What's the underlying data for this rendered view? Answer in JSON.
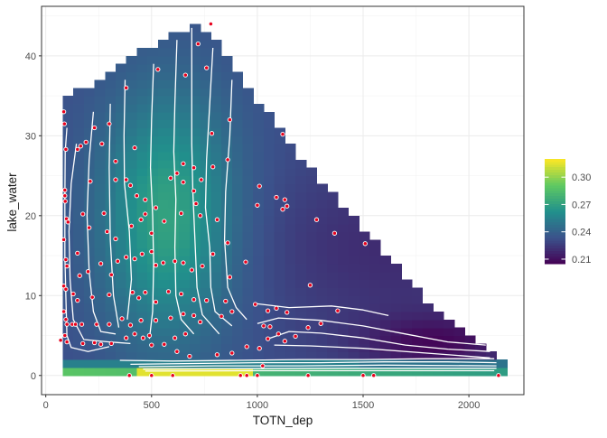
{
  "chart_data": {
    "type": "heatmap",
    "title": "",
    "xlabel": "TOTN_dep",
    "ylabel": "lake_water",
    "xlim": [
      -20,
      2260
    ],
    "ylim": [
      -2.4,
      46.2
    ],
    "x_ticks": [
      0,
      500,
      1000,
      1500,
      2000
    ],
    "x_tick_labels": [
      "0",
      "500",
      "1000",
      "1500",
      "2000"
    ],
    "y_ticks": [
      0,
      10,
      20,
      30,
      40
    ],
    "y_tick_labels": [
      "0",
      "10",
      "20",
      "30",
      "40"
    ],
    "grid": true,
    "legend_position": "right",
    "colorbar": {
      "min": 0.205,
      "max": 0.32,
      "ticks": [
        0.21,
        0.24,
        0.27,
        0.3
      ],
      "tick_labels": [
        "0.21",
        "0.24",
        "0.27",
        "0.30"
      ],
      "palette": [
        "#440154",
        "#3b528b",
        "#21908c",
        "#5ec962",
        "#fde725"
      ]
    },
    "surface": {
      "x_range": [
        80,
        2150
      ],
      "y_range": [
        0,
        44
      ],
      "cell_w": 50,
      "cell_h": 1,
      "upper_boundary": [
        [
          80,
          34
        ],
        [
          150,
          35
        ],
        [
          300,
          37
        ],
        [
          450,
          40
        ],
        [
          600,
          42
        ],
        [
          700,
          43.5
        ],
        [
          850,
          40
        ],
        [
          1000,
          34
        ],
        [
          1200,
          27
        ],
        [
          1400,
          21
        ],
        [
          1600,
          15
        ],
        [
          1800,
          9
        ],
        [
          2000,
          5
        ],
        [
          2150,
          2
        ]
      ],
      "max_region": {
        "x": 580,
        "y": 20
      },
      "min_region": {
        "x": 1850,
        "y": 4
      },
      "high_strip": {
        "x_from": 450,
        "x_to": 1000,
        "y": 0.3
      }
    },
    "contours": [
      {
        "level": 0.25,
        "points": [
          [
            100,
            31
          ],
          [
            92,
            28
          ],
          [
            90,
            22
          ],
          [
            90,
            15
          ],
          [
            95,
            10
          ],
          [
            100,
            5
          ],
          [
            120,
            3.5
          ],
          [
            200,
            3
          ],
          [
            300,
            3.6
          ]
        ]
      },
      {
        "level": 0.255,
        "points": [
          [
            145,
            29
          ],
          [
            120,
            24
          ],
          [
            110,
            18
          ],
          [
            115,
            12
          ],
          [
            130,
            7
          ],
          [
            180,
            4.5
          ],
          [
            300,
            4.2
          ],
          [
            400,
            4
          ]
        ]
      },
      {
        "level": 0.26,
        "points": [
          [
            225,
            33
          ],
          [
            205,
            27
          ],
          [
            195,
            20
          ],
          [
            205,
            13
          ],
          [
            225,
            8
          ],
          [
            260,
            5.5
          ],
          [
            330,
            5.2
          ]
        ]
      },
      {
        "level": 0.265,
        "points": [
          [
            305,
            34
          ],
          [
            300,
            26
          ],
          [
            305,
            17
          ],
          [
            320,
            10
          ],
          [
            345,
            6
          ]
        ]
      },
      {
        "level": 0.27,
        "points": [
          [
            375,
            37
          ],
          [
            370,
            30
          ],
          [
            372,
            24
          ],
          [
            395,
            18
          ],
          [
            405,
            12
          ],
          [
            385,
            7
          ]
        ]
      },
      {
        "level": 0.265,
        "points": [
          [
            510,
            39
          ],
          [
            500,
            32
          ],
          [
            495,
            26
          ],
          [
            505,
            20
          ],
          [
            510,
            14
          ],
          [
            505,
            8
          ],
          [
            490,
            4.6
          ]
        ]
      },
      {
        "level": 0.26,
        "points": [
          [
            620,
            42
          ],
          [
            610,
            34
          ],
          [
            605,
            28
          ],
          [
            615,
            22
          ],
          [
            610,
            16
          ],
          [
            615,
            10
          ],
          [
            640,
            7
          ],
          [
            700,
            5.2
          ]
        ]
      },
      {
        "level": 0.255,
        "points": [
          [
            690,
            43.5
          ],
          [
            690,
            36
          ],
          [
            690,
            29
          ],
          [
            695,
            23
          ],
          [
            705,
            17
          ],
          [
            715,
            11
          ],
          [
            740,
            7.6
          ],
          [
            820,
            5.2
          ]
        ]
      },
      {
        "level": 0.25,
        "points": [
          [
            790,
            41
          ],
          [
            775,
            34
          ],
          [
            760,
            27
          ],
          [
            755,
            21
          ],
          [
            775,
            16
          ],
          [
            780,
            11
          ],
          [
            800,
            8
          ],
          [
            880,
            6.2
          ]
        ]
      },
      {
        "level": 0.245,
        "points": [
          [
            880,
            37
          ],
          [
            870,
            30
          ],
          [
            850,
            23
          ],
          [
            845,
            17
          ],
          [
            860,
            11
          ],
          [
            900,
            8.5
          ],
          [
            950,
            7
          ]
        ]
      },
      {
        "level": 0.24,
        "points": [
          [
            990,
            9
          ],
          [
            1150,
            8.5
          ],
          [
            1350,
            8.7
          ],
          [
            1500,
            8.2
          ],
          [
            1620,
            7.5
          ]
        ]
      },
      {
        "level": 0.235,
        "points": [
          [
            1000,
            6.5
          ],
          [
            1100,
            7.2
          ],
          [
            1300,
            6.9
          ],
          [
            1500,
            6.2
          ],
          [
            1700,
            5.2
          ],
          [
            1900,
            4.2
          ],
          [
            2080,
            3.8
          ]
        ]
      },
      {
        "level": 0.23,
        "points": [
          [
            1040,
            4.5
          ],
          [
            1150,
            5.5
          ],
          [
            1300,
            5.3
          ],
          [
            1500,
            4.7
          ],
          [
            1700,
            3.8
          ],
          [
            1900,
            3.3
          ],
          [
            2100,
            3
          ]
        ]
      },
      {
        "level": 0.225,
        "points": [
          [
            1080,
            3.8
          ],
          [
            1250,
            3.7
          ],
          [
            1500,
            3.4
          ],
          [
            1800,
            2.8
          ],
          [
            2100,
            2.2
          ]
        ]
      },
      {
        "level": 0.26,
        "points": [
          [
            350,
            1.9
          ],
          [
            600,
            1.8
          ],
          [
            900,
            1.9
          ],
          [
            1200,
            2
          ],
          [
            1500,
            2
          ],
          [
            1800,
            2.1
          ],
          [
            2120,
            2.1
          ]
        ]
      },
      {
        "level": 0.27,
        "points": [
          [
            400,
            1.4
          ],
          [
            700,
            1.5
          ],
          [
            1000,
            1.6
          ],
          [
            1300,
            1.6
          ],
          [
            1600,
            1.7
          ],
          [
            1900,
            1.7
          ],
          [
            2130,
            1.6
          ]
        ]
      },
      {
        "level": 0.28,
        "points": [
          [
            440,
            1.1
          ],
          [
            800,
            1.2
          ],
          [
            1200,
            1.2
          ],
          [
            1600,
            1.3
          ],
          [
            2130,
            1.2
          ]
        ]
      },
      {
        "level": 0.29,
        "points": [
          [
            460,
            0.8
          ],
          [
            900,
            0.85
          ],
          [
            1400,
            0.9
          ],
          [
            2130,
            0.9
          ]
        ]
      },
      {
        "level": 0.3,
        "points": [
          [
            470,
            0.55
          ],
          [
            1000,
            0.6
          ],
          [
            1600,
            0.6
          ],
          [
            2120,
            0.6
          ]
        ]
      }
    ],
    "points": [
      [
        780,
        44
      ],
      [
        720,
        41.5
      ],
      [
        760,
        38.5
      ],
      [
        530,
        38.3
      ],
      [
        660,
        37.6
      ],
      [
        380,
        36
      ],
      [
        870,
        32
      ],
      [
        300,
        31.5
      ],
      [
        785,
        30.3
      ],
      [
        1120,
        30.2
      ],
      [
        85,
        33
      ],
      [
        88,
        31.5
      ],
      [
        95,
        28.3
      ],
      [
        150,
        28.3
      ],
      [
        165,
        28.7
      ],
      [
        190,
        29.2
      ],
      [
        230,
        31
      ],
      [
        265,
        29
      ],
      [
        420,
        28.5
      ],
      [
        330,
        26.8
      ],
      [
        790,
        26.1
      ],
      [
        210,
        24.3
      ],
      [
        330,
        24.5
      ],
      [
        380,
        24.5
      ],
      [
        400,
        23.8
      ],
      [
        430,
        22.5
      ],
      [
        470,
        22
      ],
      [
        520,
        21
      ],
      [
        590,
        24.7
      ],
      [
        620,
        25.3
      ],
      [
        650,
        26.5
      ],
      [
        700,
        26
      ],
      [
        650,
        24.2
      ],
      [
        700,
        23.1
      ],
      [
        735,
        24.5
      ],
      [
        860,
        27
      ],
      [
        1010,
        23.7
      ],
      [
        1090,
        22.3
      ],
      [
        1130,
        22
      ],
      [
        1140,
        21.2
      ],
      [
        1120,
        20.8
      ],
      [
        1000,
        21.3
      ],
      [
        1280,
        19.5
      ],
      [
        1365,
        17.8
      ],
      [
        1510,
        16.5
      ],
      [
        90,
        23.2
      ],
      [
        90,
        22.5
      ],
      [
        92,
        21.8
      ],
      [
        98,
        19.6
      ],
      [
        105,
        19.2
      ],
      [
        175,
        20.2
      ],
      [
        205,
        18.5
      ],
      [
        275,
        20.3
      ],
      [
        290,
        18
      ],
      [
        330,
        17.1
      ],
      [
        405,
        18.7
      ],
      [
        450,
        19.5
      ],
      [
        470,
        20.2
      ],
      [
        500,
        17.8
      ],
      [
        560,
        19.3
      ],
      [
        640,
        20.3
      ],
      [
        710,
        21.5
      ],
      [
        730,
        20
      ],
      [
        810,
        19.5
      ],
      [
        860,
        16.6
      ],
      [
        945,
        14.2
      ],
      [
        85,
        17
      ],
      [
        95,
        14.5
      ],
      [
        100,
        13.7
      ],
      [
        150,
        15.3
      ],
      [
        160,
        12.5
      ],
      [
        200,
        13
      ],
      [
        260,
        14
      ],
      [
        310,
        12.6
      ],
      [
        340,
        14.3
      ],
      [
        380,
        14.8
      ],
      [
        420,
        14.6
      ],
      [
        455,
        15.2
      ],
      [
        500,
        15.5
      ],
      [
        520,
        13.8
      ],
      [
        555,
        14.1
      ],
      [
        610,
        14.3
      ],
      [
        650,
        14.1
      ],
      [
        690,
        13.2
      ],
      [
        740,
        13.7
      ],
      [
        790,
        15.2
      ],
      [
        870,
        12.3
      ],
      [
        1250,
        11.3
      ],
      [
        85,
        11.2
      ],
      [
        95,
        10.8
      ],
      [
        130,
        10.2
      ],
      [
        150,
        9.4
      ],
      [
        220,
        9.8
      ],
      [
        300,
        10.1
      ],
      [
        410,
        10.4
      ],
      [
        440,
        9.7
      ],
      [
        470,
        10.4
      ],
      [
        520,
        9.2
      ],
      [
        580,
        10.5
      ],
      [
        640,
        10.2
      ],
      [
        700,
        9.5
      ],
      [
        760,
        9.4
      ],
      [
        850,
        9.3
      ],
      [
        85,
        8
      ],
      [
        95,
        7
      ],
      [
        100,
        6.4
      ],
      [
        125,
        6.4
      ],
      [
        140,
        6.4
      ],
      [
        170,
        6.4
      ],
      [
        240,
        6.4
      ],
      [
        300,
        6.4
      ],
      [
        360,
        7.1
      ],
      [
        400,
        6.3
      ],
      [
        450,
        6.9
      ],
      [
        520,
        6.9
      ],
      [
        590,
        7.2
      ],
      [
        650,
        7.7
      ],
      [
        700,
        7.5
      ],
      [
        730,
        6.7
      ],
      [
        830,
        7.4
      ],
      [
        880,
        8
      ],
      [
        990,
        8.9
      ],
      [
        1050,
        8.1
      ],
      [
        1090,
        8.4
      ],
      [
        1140,
        7.9
      ],
      [
        1240,
        6
      ],
      [
        1300,
        6.5
      ],
      [
        1380,
        8.1
      ],
      [
        1030,
        6.2
      ],
      [
        1060,
        6.1
      ],
      [
        1100,
        5.2
      ],
      [
        1050,
        4.6
      ],
      [
        90,
        5
      ],
      [
        100,
        4.2
      ],
      [
        175,
        4
      ],
      [
        230,
        4.1
      ],
      [
        260,
        3.9
      ],
      [
        310,
        4
      ],
      [
        380,
        4.7
      ],
      [
        420,
        5.2
      ],
      [
        460,
        4.7
      ],
      [
        490,
        5
      ],
      [
        500,
        3.8
      ],
      [
        560,
        3.9
      ],
      [
        610,
        4.7
      ],
      [
        660,
        5.2
      ],
      [
        620,
        3
      ],
      [
        680,
        2.4
      ],
      [
        810,
        2.6
      ],
      [
        880,
        2.8
      ],
      [
        950,
        3.6
      ],
      [
        1010,
        3.4
      ],
      [
        1130,
        4.3
      ],
      [
        1180,
        4.9
      ],
      [
        1025,
        1.2
      ],
      [
        920,
        0
      ],
      [
        950,
        0
      ],
      [
        1000,
        0
      ],
      [
        500,
        0
      ],
      [
        600,
        0
      ],
      [
        1240,
        0
      ],
      [
        1500,
        0
      ],
      [
        1550,
        0
      ],
      [
        2140,
        0
      ],
      [
        70,
        4.4
      ],
      [
        395,
        0
      ]
    ]
  }
}
